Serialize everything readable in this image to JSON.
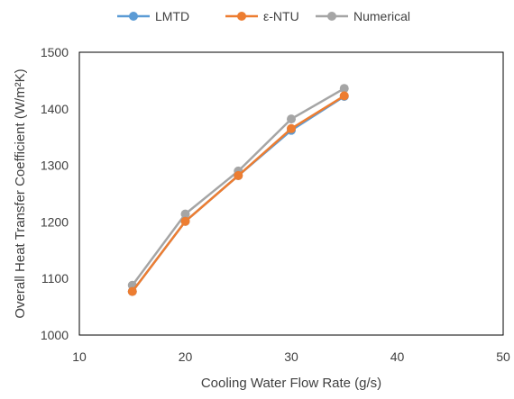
{
  "chart_data": {
    "type": "line",
    "title": "",
    "xlabel": "Cooling Water Flow Rate (g/s)",
    "ylabel": "Overall Heat Transfer Coefficient (W/m²K)",
    "xlim": [
      10,
      50
    ],
    "ylim": [
      1000,
      1500
    ],
    "x_ticks": [
      10,
      20,
      30,
      40,
      50
    ],
    "y_ticks": [
      1000,
      1100,
      1200,
      1300,
      1400,
      1500
    ],
    "grid": false,
    "legend_position": "top",
    "x": [
      15,
      20,
      25,
      30,
      35
    ],
    "series": [
      {
        "name": "LMTD",
        "color": "#5B9BD5",
        "values": [
          1077,
          1201,
          1282,
          1362,
          1422
        ]
      },
      {
        "name": "ε-NTU",
        "color": "#ED7D31",
        "values": [
          1077,
          1201,
          1282,
          1365,
          1423
        ]
      },
      {
        "name": "Numerical",
        "color": "#A5A5A5",
        "values": [
          1088,
          1214,
          1290,
          1382,
          1436
        ]
      }
    ]
  }
}
